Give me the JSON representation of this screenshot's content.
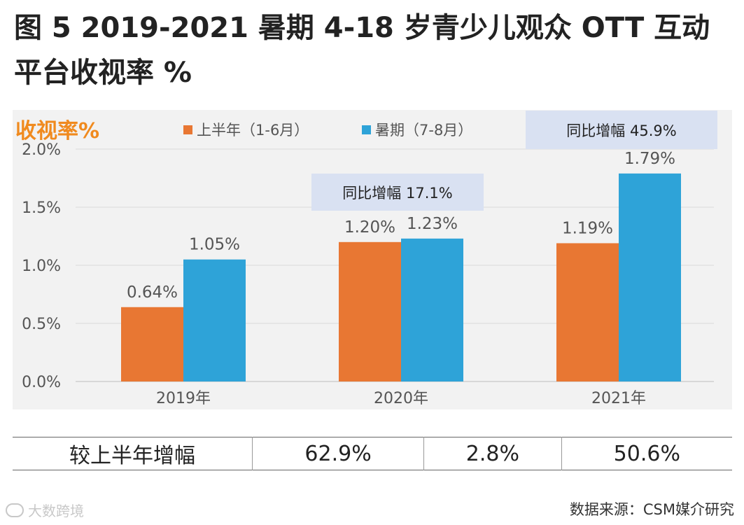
{
  "title": "图 5 2019-2021 暑期 4-18 岁青少儿观众 OTT 互动平台收视率 %",
  "colors": {
    "h1": "#e87733",
    "summer": "#2ea3d8",
    "unit_label": "#f08a1e",
    "annotation_bg": "#d9e1f2"
  },
  "chart_data": {
    "type": "bar",
    "title": "2019-2021 暑期 4-18 岁青少儿观众 OTT 互动平台收视率 %",
    "ylabel": "收视率%",
    "xlabel": "",
    "categories": [
      "2019年",
      "2020年",
      "2021年"
    ],
    "series": [
      {
        "name": "上半年（1-6月）",
        "color": "#e87733",
        "values": [
          0.64,
          1.2,
          1.19
        ],
        "labels": [
          "0.64%",
          "1.20%",
          "1.19%"
        ]
      },
      {
        "name": "暑期（7-8月）",
        "color": "#2ea3d8",
        "values": [
          1.05,
          1.23,
          1.79
        ],
        "labels": [
          "1.05%",
          "1.23%",
          "1.79%"
        ]
      }
    ],
    "ylim": [
      0,
      2.0
    ],
    "yticks": [
      0,
      0.5,
      1.0,
      1.5,
      2.0
    ],
    "ytick_labels": [
      "0.0%",
      "0.5%",
      "1.0%",
      "1.5%",
      "2.0%"
    ],
    "grid": true,
    "legend_position": "top",
    "annotations": [
      {
        "year": "2020年",
        "text": "同比增幅 17.1%"
      },
      {
        "year": "2021年",
        "text": "同比增幅 45.9%"
      }
    ]
  },
  "growth_table": {
    "label": "较上半年增幅",
    "values": [
      "62.9%",
      "2.8%",
      "50.6%"
    ]
  },
  "footer": {
    "logo_text": "大数跨境",
    "source": "数据来源：CSM媒介研究"
  }
}
